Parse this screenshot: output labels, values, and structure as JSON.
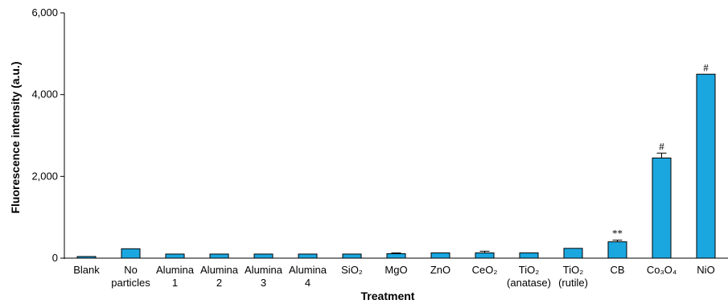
{
  "chart_data": {
    "type": "bar",
    "title": "",
    "xlabel": "Treatment",
    "ylabel": "Fluorescence intensity (a.u.)",
    "ylim": [
      0,
      6000
    ],
    "yticks": [
      0,
      2000,
      4000,
      6000
    ],
    "ytick_labels": [
      "0",
      "2,000",
      "4,000",
      "6,000"
    ],
    "grid": false,
    "bar_color": "#1aa7e0",
    "categories": [
      {
        "label": "Blank",
        "line1": "Blank",
        "line2": ""
      },
      {
        "label": "No particles",
        "line1": "No",
        "line2": "particles"
      },
      {
        "label": "Alumina 1",
        "line1": "Alumina",
        "line2": "1"
      },
      {
        "label": "Alumina 2",
        "line1": "Alumina",
        "line2": "2"
      },
      {
        "label": "Alumina 3",
        "line1": "Alumina",
        "line2": "3"
      },
      {
        "label": "Alumina 4",
        "line1": "Alumina",
        "line2": "4"
      },
      {
        "label": "SiO2",
        "line1": "SiO₂",
        "line2": ""
      },
      {
        "label": "MgO",
        "line1": "MgO",
        "line2": ""
      },
      {
        "label": "ZnO",
        "line1": "ZnO",
        "line2": ""
      },
      {
        "label": "CeO2",
        "line1": "CeO₂",
        "line2": ""
      },
      {
        "label": "TiO2 (anatase)",
        "line1": "TiO₂",
        "line2": "(anatase)"
      },
      {
        "label": "TiO2 (rutile)",
        "line1": "TiO₂",
        "line2": "(rutile)"
      },
      {
        "label": "CB",
        "line1": "CB",
        "line2": ""
      },
      {
        "label": "Co3O4",
        "line1": "Co₃O₄",
        "line2": ""
      },
      {
        "label": "NiO",
        "line1": "NiO",
        "line2": ""
      }
    ],
    "values": [
      40,
      230,
      100,
      100,
      100,
      100,
      100,
      110,
      130,
      130,
      130,
      240,
      400,
      2450,
      4500
    ],
    "errors": [
      0,
      0,
      0,
      0,
      0,
      0,
      0,
      20,
      0,
      40,
      0,
      0,
      40,
      120,
      0
    ],
    "annotations": [
      "",
      "",
      "",
      "",
      "",
      "",
      "",
      "",
      "",
      "",
      "",
      "",
      "**",
      "#",
      "#"
    ]
  }
}
